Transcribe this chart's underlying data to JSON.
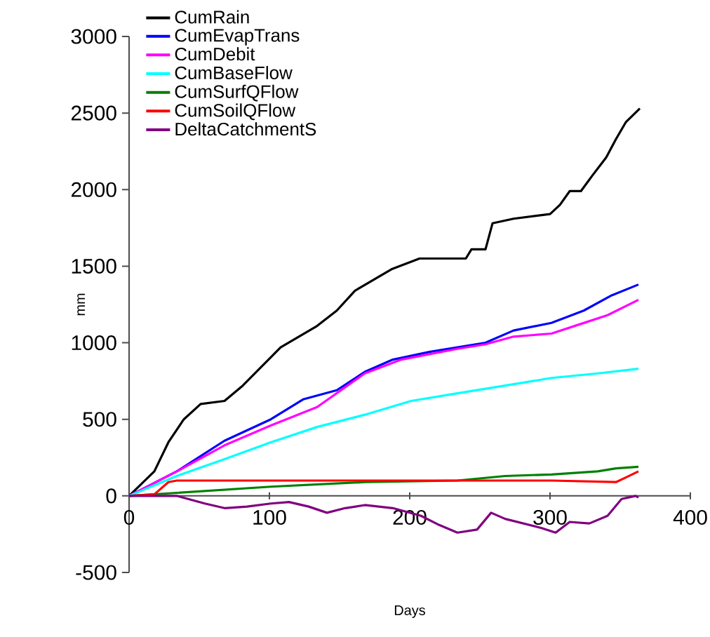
{
  "chart_data": {
    "type": "line",
    "xlabel": "Days",
    "ylabel": "mm",
    "xlim": [
      0,
      400
    ],
    "xticks": [
      0,
      100,
      200,
      300,
      400
    ],
    "ylim": [
      -500,
      3000
    ],
    "yticks": [
      -500,
      0,
      500,
      1000,
      1500,
      2000,
      2500,
      3000
    ],
    "grid": false,
    "legend": "top left",
    "marker": "none",
    "line_style": "solid",
    "series": [
      {
        "name": "CumRain",
        "color": "#000000",
        "x": [
          0,
          18,
          28,
          39,
          51,
          68,
          81,
          94,
          108,
          121,
          134,
          148,
          161,
          174,
          187,
          207,
          240,
          244,
          254,
          259,
          274,
          300,
          307,
          314,
          322,
          330,
          340,
          347,
          354,
          364
        ],
        "values": [
          0,
          160,
          350,
          500,
          600,
          620,
          720,
          840,
          970,
          1040,
          1110,
          1210,
          1340,
          1410,
          1480,
          1550,
          1550,
          1610,
          1610,
          1780,
          1810,
          1840,
          1900,
          1990,
          1990,
          2090,
          2210,
          2330,
          2440,
          2530
        ]
      },
      {
        "name": "CumEvapTrans",
        "color": "#0000ff",
        "x": [
          0,
          34,
          68,
          101,
          124,
          148,
          168,
          188,
          214,
          234,
          254,
          274,
          301,
          324,
          344,
          363
        ],
        "values": [
          0,
          160,
          360,
          500,
          630,
          690,
          810,
          890,
          940,
          970,
          1000,
          1080,
          1130,
          1210,
          1310,
          1380
        ]
      },
      {
        "name": "CumDebit",
        "color": "#ff00ff",
        "x": [
          0,
          34,
          68,
          101,
          134,
          168,
          194,
          234,
          254,
          274,
          301,
          321,
          341,
          363
        ],
        "values": [
          0,
          160,
          330,
          460,
          580,
          800,
          890,
          960,
          990,
          1040,
          1060,
          1120,
          1180,
          1280
        ]
      },
      {
        "name": "CumBaseFlow",
        "color": "#00ffff",
        "x": [
          0,
          34,
          68,
          101,
          134,
          168,
          201,
          234,
          268,
          301,
          334,
          363
        ],
        "values": [
          0,
          130,
          240,
          350,
          450,
          530,
          620,
          670,
          720,
          770,
          800,
          830
        ]
      },
      {
        "name": "CumSurfQFlow",
        "color": "#008000",
        "x": [
          0,
          34,
          101,
          168,
          234,
          268,
          301,
          334,
          347,
          363
        ],
        "values": [
          0,
          20,
          60,
          90,
          100,
          130,
          140,
          160,
          180,
          190
        ]
      },
      {
        "name": "CumSoilQFlow",
        "color": "#ff0000",
        "x": [
          0,
          18,
          28,
          34,
          101,
          234,
          301,
          347,
          354,
          363
        ],
        "values": [
          0,
          10,
          90,
          100,
          100,
          100,
          100,
          90,
          120,
          160
        ]
      },
      {
        "name": "DeltaCatchmentS",
        "color": "#800080",
        "x": [
          0,
          34,
          54,
          68,
          84,
          101,
          114,
          128,
          141,
          154,
          168,
          188,
          208,
          221,
          234,
          248,
          258,
          268,
          281,
          294,
          304,
          314,
          328,
          341,
          351,
          361,
          363
        ],
        "values": [
          0,
          0,
          -50,
          -80,
          -70,
          -50,
          -40,
          -70,
          -110,
          -80,
          -60,
          -80,
          -130,
          -190,
          -240,
          -220,
          -110,
          -150,
          -180,
          -210,
          -240,
          -170,
          -180,
          -130,
          -20,
          0,
          -10
        ]
      }
    ]
  }
}
